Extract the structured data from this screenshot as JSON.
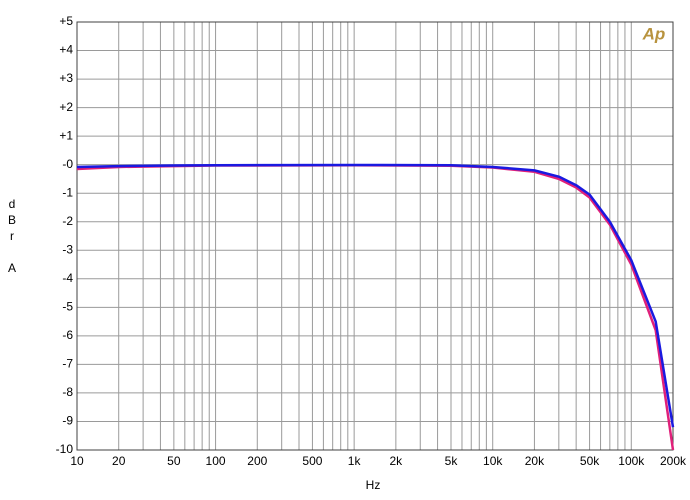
{
  "chart_data": {
    "type": "line",
    "y_label": "dBr A",
    "x_label": "Hz",
    "logo": "Ap",
    "x_log": true,
    "grid": true,
    "xlim": [
      10,
      200000
    ],
    "ylim": [
      -10,
      5
    ],
    "xticks": [
      10,
      20,
      50,
      100,
      200,
      500,
      {
        "value": 1000,
        "label": "1k"
      },
      {
        "value": 2000,
        "label": "2k"
      },
      {
        "value": 5000,
        "label": "5k"
      },
      {
        "value": 10000,
        "label": "10k"
      },
      {
        "value": 20000,
        "label": "20k"
      },
      {
        "value": 50000,
        "label": "50k"
      },
      {
        "value": 100000,
        "label": "100k"
      },
      {
        "value": 200000,
        "label": "200k"
      }
    ],
    "xgrid_minor": [
      30,
      40,
      60,
      70,
      80,
      90,
      300,
      400,
      600,
      700,
      800,
      900,
      3000,
      4000,
      6000,
      7000,
      8000,
      9000,
      30000,
      40000,
      60000,
      70000,
      80000,
      90000,
      300000
    ],
    "yticks": [
      {
        "value": 5,
        "label": "+5"
      },
      {
        "value": 4,
        "label": "+4"
      },
      {
        "value": 3,
        "label": "+3"
      },
      {
        "value": 2,
        "label": "+2"
      },
      {
        "value": 1,
        "label": "+1"
      },
      {
        "value": 0,
        "label": "-0"
      },
      -1,
      -2,
      -3,
      -4,
      -5,
      -6,
      -7,
      -8,
      -9,
      -10
    ],
    "x": [
      10,
      20,
      50,
      100,
      1000,
      5000,
      10000,
      20000,
      30000,
      40000,
      50000,
      70000,
      100000,
      150000,
      200000
    ],
    "series": [
      {
        "color": "#e0207a",
        "values": [
          -0.15,
          -0.08,
          -0.05,
          -0.03,
          -0.02,
          -0.04,
          -0.1,
          -0.25,
          -0.5,
          -0.8,
          -1.15,
          -2.1,
          -3.5,
          -5.8,
          -10
        ]
      },
      {
        "color": "#1a1ae0",
        "values": [
          -0.08,
          -0.05,
          -0.03,
          -0.02,
          -0.01,
          -0.02,
          -0.08,
          -0.2,
          -0.42,
          -0.72,
          -1.05,
          -2.0,
          -3.35,
          -5.5,
          -9.2
        ]
      }
    ]
  }
}
